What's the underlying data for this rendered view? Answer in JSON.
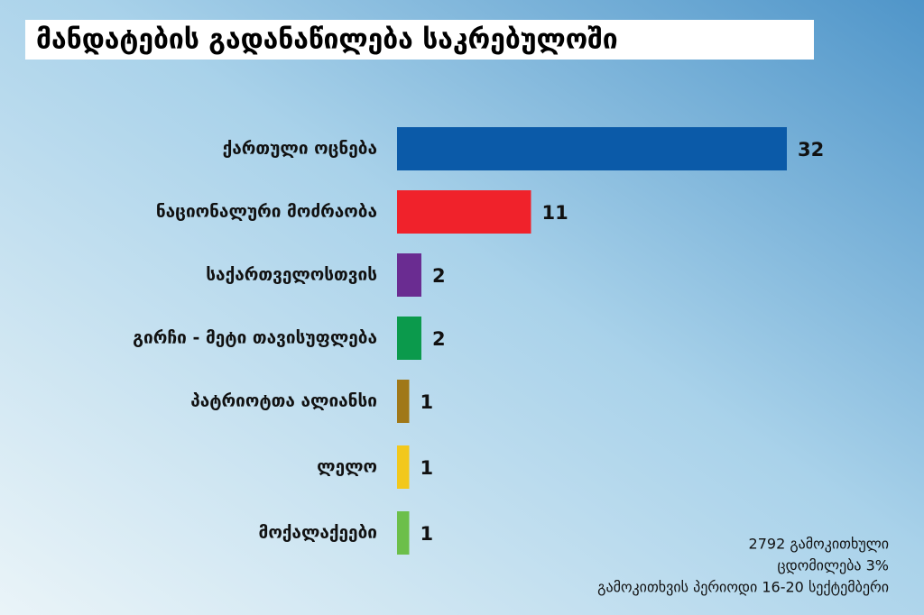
{
  "chart_data": {
    "type": "bar",
    "orientation": "horizontal",
    "title": "მანდატების გადანაწილება საკრებულოში",
    "categories": [
      "ქართული ოცნება",
      "ნაციონალური მოძრაობა",
      "საქართველოსთვის",
      "გირჩი - მეტი თავისუფლება",
      "პატრიოტთა ალიანსი",
      "ლელო",
      "მოქალაქეები"
    ],
    "values": [
      32,
      11,
      2,
      2,
      1,
      1,
      1
    ],
    "colors": [
      "#0b5aa8",
      "#f0222b",
      "#6a2c91",
      "#0b9a4c",
      "#a07818",
      "#f2c81c",
      "#6cbf4a"
    ],
    "notes": [
      "2792 გამოკითხული",
      "ცდომილება 3%",
      "გამოკითხვის პერიოდი 16-20 სექტემბერი"
    ]
  }
}
